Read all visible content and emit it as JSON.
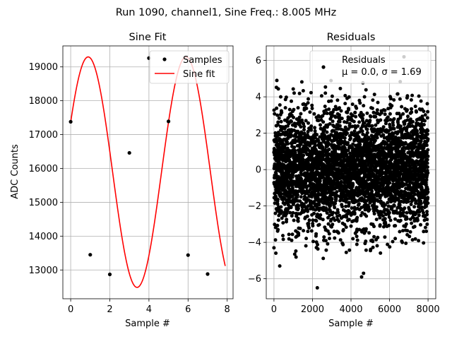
{
  "suptitle": "Run 1090, channel1, Sine Freq.: 8.005 MHz",
  "colors": {
    "samples": "#000000",
    "fit": "#ff0000",
    "residuals": "#000000",
    "grid": "#b0b0b0"
  },
  "chart_data": [
    {
      "type": "scatter",
      "title": "Sine Fit",
      "xlabel": "Sample #",
      "ylabel": "ADC Counts",
      "xlim": [
        -0.4,
        8.3
      ],
      "ylim": [
        12150,
        19620
      ],
      "xticks": [
        0,
        2,
        4,
        6,
        8
      ],
      "yticks": [
        13000,
        14000,
        15000,
        16000,
        17000,
        18000,
        19000
      ],
      "grid": true,
      "legend": {
        "location": "top-right",
        "entries": [
          "Samples",
          "Sine fit"
        ]
      },
      "series": [
        {
          "name": "Samples",
          "kind": "scatter",
          "x": [
            0,
            1,
            2,
            3,
            4,
            5,
            6,
            7
          ],
          "y": [
            17380,
            13450,
            12870,
            16460,
            19260,
            17390,
            13440,
            12880
          ]
        },
        {
          "name": "Sine fit",
          "kind": "line",
          "x_range": [
            0,
            7.9
          ],
          "model": {
            "offset": 15890,
            "amplitude": 3405,
            "cycles_per_sample": 0.2,
            "phase": 0.4484
          }
        }
      ]
    },
    {
      "type": "scatter",
      "title": "Residuals",
      "xlabel": "Sample #",
      "ylabel": "",
      "xlim": [
        -400,
        8400
      ],
      "ylim": [
        -7.1,
        6.8
      ],
      "xticks": [
        0,
        2000,
        4000,
        6000,
        8000
      ],
      "yticks": [
        -6,
        -4,
        -2,
        0,
        2,
        4,
        6
      ],
      "grid": true,
      "legend": {
        "location": "top-right",
        "entries": [
          "Residuals",
          "μ = 0.0, σ = 1.69"
        ]
      },
      "series": [
        {
          "name": "Residuals",
          "n_points": 8000,
          "mean": 0.0,
          "std": 1.69,
          "x": [
            0,
            150,
            300,
            350,
            2250,
            4550,
            4650,
            4700,
            6750
          ],
          "y": [
            -4.3,
            4.9,
            -5.3,
            4.0,
            -6.5,
            -5.9,
            -5.7,
            4.0,
            6.2
          ]
        }
      ]
    }
  ]
}
